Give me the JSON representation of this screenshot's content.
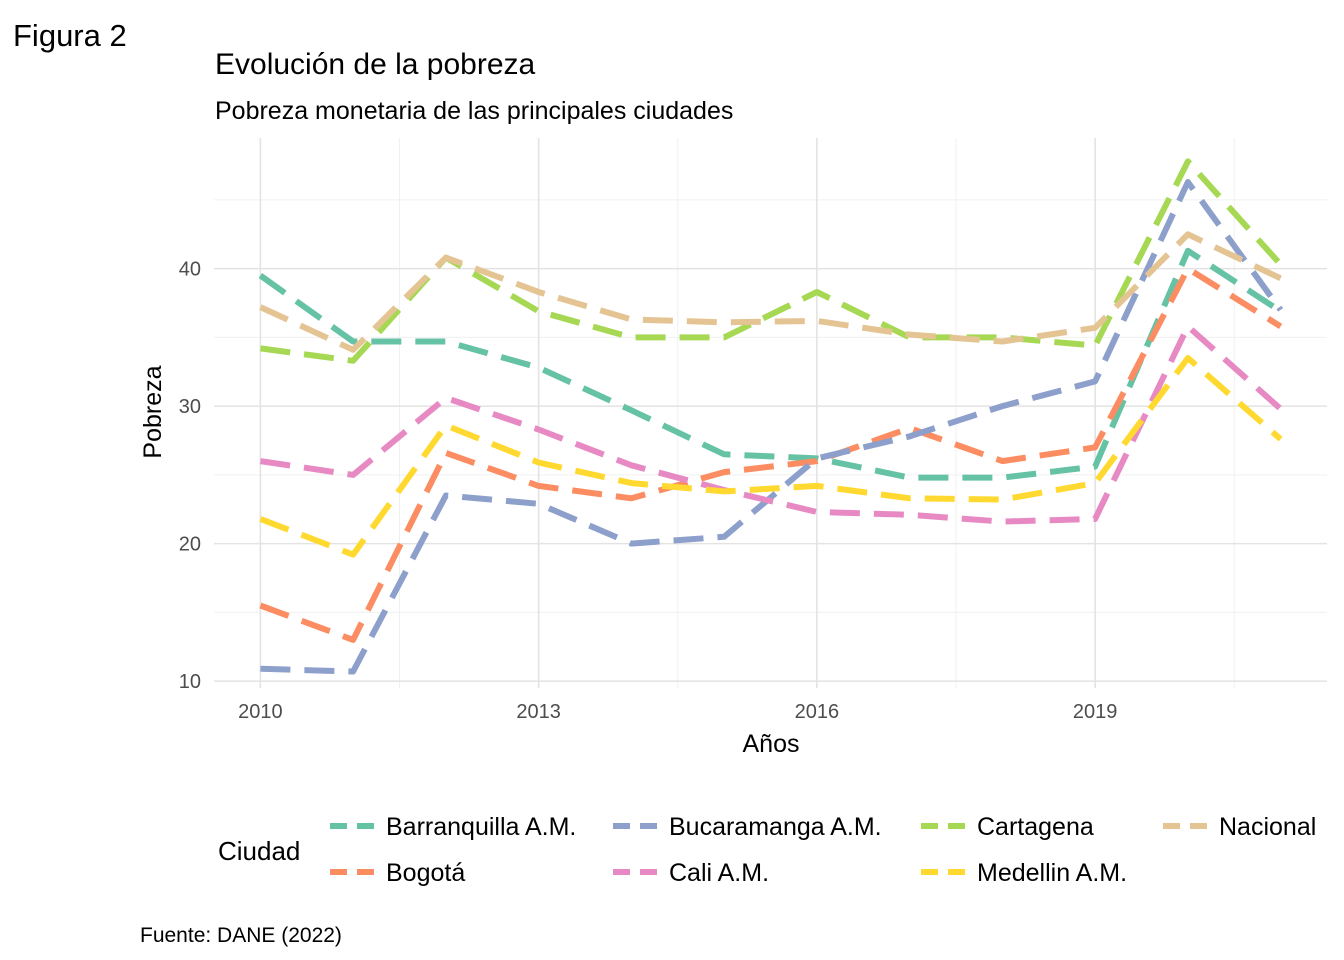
{
  "figure_label": "Figura 2",
  "source_note": "Fuente: DANE (2022)",
  "chart_data": {
    "type": "line",
    "title": "Evolución de la pobreza",
    "subtitle": "Pobreza monetaria de las principales ciudades",
    "xlabel": "Años",
    "ylabel": "Pobreza",
    "x": [
      2010,
      2011,
      2012,
      2013,
      2014,
      2015,
      2016,
      2017,
      2018,
      2019,
      2020,
      2021
    ],
    "xlim": [
      2009.5,
      2021.5
    ],
    "ylim": [
      9.5,
      49.5
    ],
    "x_ticks": [
      2010,
      2013,
      2016,
      2019
    ],
    "x_tick_labels": [
      "2010",
      "2013",
      "2016",
      "2019"
    ],
    "x_minor_ticks": [
      2011.5,
      2014.5,
      2017.5,
      2020.5
    ],
    "y_ticks": [
      10,
      20,
      30,
      40
    ],
    "y_tick_labels": [
      "10",
      "20",
      "30",
      "40"
    ],
    "y_minor_ticks": [
      15,
      25,
      35,
      45
    ],
    "grid": true,
    "line_style": "dashed",
    "legend": {
      "title": "Ciudad",
      "position": "bottom"
    },
    "series": [
      {
        "name": "Barranquilla A.M.",
        "color": "#66c2a5",
        "values": [
          39.5,
          34.7,
          34.7,
          32.8,
          29.7,
          26.5,
          26.2,
          24.8,
          24.8,
          25.6,
          41.3,
          36.9
        ]
      },
      {
        "name": "Bogotá",
        "color": "#fc8d62",
        "values": [
          15.5,
          13.0,
          26.6,
          24.2,
          23.3,
          25.2,
          26.0,
          28.4,
          26.0,
          27.0,
          40.0,
          35.8
        ]
      },
      {
        "name": "Bucaramanga A.M.",
        "color": "#8da0cb",
        "values": [
          10.9,
          10.7,
          23.5,
          22.9,
          20.0,
          20.5,
          26.2,
          27.8,
          30.0,
          31.8,
          46.3,
          37.0
        ]
      },
      {
        "name": "Cali A.M.",
        "color": "#e78ac3",
        "values": [
          26.0,
          25.0,
          30.6,
          28.3,
          25.7,
          23.9,
          22.3,
          22.1,
          21.6,
          21.8,
          35.8,
          29.8
        ]
      },
      {
        "name": "Cartagena",
        "color": "#a6d854",
        "values": [
          34.2,
          33.3,
          40.8,
          36.9,
          35.0,
          35.0,
          38.3,
          35.0,
          35.0,
          34.4,
          47.8,
          40.3
        ]
      },
      {
        "name": "Medellin A.M.",
        "color": "#ffd92f",
        "values": [
          21.8,
          19.2,
          28.6,
          25.9,
          24.4,
          23.8,
          24.2,
          23.3,
          23.2,
          24.4,
          33.5,
          27.6
        ]
      },
      {
        "name": "Nacional",
        "color": "#e5c494",
        "values": [
          37.2,
          34.1,
          40.8,
          38.3,
          36.3,
          36.1,
          36.2,
          35.2,
          34.7,
          35.7,
          42.5,
          39.3
        ]
      }
    ]
  }
}
